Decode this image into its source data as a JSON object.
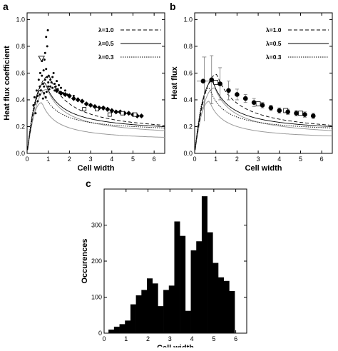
{
  "chart_data": [
    {
      "panel": "a",
      "type": "scatter",
      "xlabel": "Cell width",
      "ylabel": "Heat flux coefficient",
      "xlim": [
        0,
        6.5
      ],
      "ylim": [
        0,
        1.05
      ],
      "xticks": [
        "0",
        "1",
        "2",
        "3",
        "4",
        "5",
        "6"
      ],
      "yticks": [
        "0.0",
        "0.2",
        "0.4",
        "0.6",
        "0.8",
        "1.0"
      ],
      "legend": [
        {
          "label": "λ=1.0",
          "style": "dashed"
        },
        {
          "label": "λ=0.5",
          "style": "solid"
        },
        {
          "label": "λ=0.3",
          "style": "dotted"
        }
      ],
      "model_peaks": [
        {
          "lambda": 1.0,
          "peak_x": 1.05,
          "peak_y": 0.58,
          "y_at_6_5": 0.21
        },
        {
          "lambda": 0.5,
          "peak_x": 0.85,
          "peak_y": 0.53,
          "y_at_6_5": 0.2
        },
        {
          "lambda": 0.3,
          "peak_x": 0.7,
          "peak_y": 0.48,
          "y_at_6_5": 0.19
        }
      ],
      "gray_curves": [
        {
          "peak_x": 0.95,
          "peak_y": 0.48,
          "y_at_6_5": 0.17
        },
        {
          "peak_x": 0.7,
          "peak_y": 0.38,
          "y_at_6_5": 0.12
        }
      ],
      "dots": [
        [
          0.3,
          0.36
        ],
        [
          0.35,
          0.42
        ],
        [
          0.4,
          0.3
        ],
        [
          0.45,
          0.47
        ],
        [
          0.5,
          0.43
        ],
        [
          0.5,
          0.39
        ],
        [
          0.55,
          0.55
        ],
        [
          0.6,
          0.5
        ],
        [
          0.6,
          0.44
        ],
        [
          0.62,
          0.6
        ],
        [
          0.65,
          0.47
        ],
        [
          0.7,
          0.58
        ],
        [
          0.7,
          0.69
        ],
        [
          0.75,
          0.41
        ],
        [
          0.75,
          0.52
        ],
        [
          0.78,
          0.62
        ],
        [
          0.8,
          0.45
        ],
        [
          0.8,
          0.5
        ],
        [
          0.82,
          0.7
        ],
        [
          0.85,
          0.55
        ],
        [
          0.85,
          0.75
        ],
        [
          0.88,
          0.42
        ],
        [
          0.9,
          0.63
        ],
        [
          0.9,
          0.87
        ],
        [
          0.92,
          0.46
        ],
        [
          0.95,
          0.8
        ],
        [
          0.95,
          0.57
        ],
        [
          0.98,
          0.92
        ],
        [
          1.0,
          0.5
        ],
        [
          1.0,
          0.53
        ],
        [
          1.02,
          0.58
        ],
        [
          1.05,
          0.48
        ],
        [
          1.1,
          0.55
        ],
        [
          1.1,
          0.5
        ],
        [
          1.15,
          0.53
        ],
        [
          1.2,
          0.57
        ],
        [
          1.2,
          0.49
        ],
        [
          1.25,
          0.6
        ],
        [
          1.3,
          0.52
        ],
        [
          1.3,
          0.47
        ],
        [
          1.35,
          0.5
        ],
        [
          1.4,
          0.54
        ],
        [
          1.45,
          0.48
        ],
        [
          1.5,
          0.51
        ],
        [
          1.55,
          0.46
        ],
        [
          1.6,
          0.49
        ],
        [
          1.7,
          0.45
        ],
        [
          1.8,
          0.47
        ],
        [
          1.9,
          0.44
        ],
        [
          2.0,
          0.42
        ],
        [
          2.2,
          0.43
        ],
        [
          2.4,
          0.41
        ],
        [
          2.6,
          0.39
        ],
        [
          2.8,
          0.37
        ],
        [
          3.0,
          0.36
        ],
        [
          3.2,
          0.35
        ],
        [
          3.4,
          0.34
        ],
        [
          3.6,
          0.33
        ],
        [
          3.8,
          0.32
        ],
        [
          4.0,
          0.31
        ]
      ],
      "diamonds": [
        [
          1.4,
          0.47
        ],
        [
          1.6,
          0.45
        ],
        [
          1.8,
          0.44
        ],
        [
          2.0,
          0.43
        ],
        [
          2.2,
          0.41
        ],
        [
          2.4,
          0.4
        ],
        [
          2.6,
          0.39
        ],
        [
          2.8,
          0.37
        ],
        [
          3.0,
          0.36
        ],
        [
          3.2,
          0.35
        ],
        [
          3.4,
          0.34
        ],
        [
          3.6,
          0.34
        ],
        [
          3.8,
          0.33
        ],
        [
          4.0,
          0.32
        ],
        [
          4.2,
          0.31
        ],
        [
          4.4,
          0.31
        ],
        [
          4.6,
          0.3
        ],
        [
          4.8,
          0.3
        ],
        [
          5.0,
          0.29
        ],
        [
          5.2,
          0.28
        ],
        [
          5.4,
          0.28
        ]
      ],
      "open_squares": [
        [
          2.7,
          0.33
        ],
        [
          3.3,
          0.33
        ],
        [
          3.9,
          0.29
        ],
        [
          4.5,
          0.3
        ],
        [
          5.1,
          0.29
        ]
      ],
      "open_triangle": [
        0.68,
        0.71
      ]
    },
    {
      "panel": "b",
      "type": "scatter",
      "xlabel": "Cell width",
      "ylabel": "Heat flux",
      "xlim": [
        0,
        6.5
      ],
      "ylim": [
        0,
        1.05
      ],
      "xticks": [
        "0",
        "1",
        "2",
        "3",
        "4",
        "5",
        "6"
      ],
      "yticks": [
        "0.0",
        "0.2",
        "0.4",
        "0.6",
        "0.8",
        "1.0"
      ],
      "legend": [
        {
          "label": "λ=1.0",
          "style": "dashed"
        },
        {
          "label": "λ=0.5",
          "style": "solid"
        },
        {
          "label": "λ=0.3",
          "style": "dotted"
        }
      ],
      "points": [
        {
          "x": 0.4,
          "y": 0.54,
          "err": 0.0
        },
        {
          "x": 0.8,
          "y": 0.55,
          "err": 0.18
        },
        {
          "x": 1.2,
          "y": 0.52,
          "err": 0.12
        },
        {
          "x": 1.6,
          "y": 0.47,
          "err": 0.07
        },
        {
          "x": 2.0,
          "y": 0.44,
          "err": 0.04
        },
        {
          "x": 2.4,
          "y": 0.41,
          "err": 0.03
        },
        {
          "x": 2.8,
          "y": 0.38,
          "err": 0.03
        },
        {
          "x": 3.2,
          "y": 0.36,
          "err": 0.02
        },
        {
          "x": 3.6,
          "y": 0.34,
          "err": 0.02
        },
        {
          "x": 4.0,
          "y": 0.32,
          "err": 0.02
        },
        {
          "x": 4.4,
          "y": 0.31,
          "err": 0.02
        },
        {
          "x": 4.8,
          "y": 0.3,
          "err": 0.02
        },
        {
          "x": 5.2,
          "y": 0.29,
          "err": 0.02
        },
        {
          "x": 5.6,
          "y": 0.28,
          "err": 0.02
        }
      ],
      "open_points": [
        [
          1.0,
          0.53
        ],
        [
          3.0,
          0.37
        ],
        [
          4.3,
          0.32
        ],
        [
          5.0,
          0.3
        ]
      ],
      "left_errorbar": {
        "x": 0.45,
        "low": 0.24,
        "high": 0.72
      },
      "model_peaks": [
        {
          "lambda": 1.0,
          "peak_x": 1.05,
          "peak_y": 0.59,
          "y_at_6_5": 0.21
        },
        {
          "lambda": 0.5,
          "peak_x": 0.85,
          "peak_y": 0.54,
          "y_at_6_5": 0.2
        },
        {
          "lambda": 0.3,
          "peak_x": 0.7,
          "peak_y": 0.49,
          "y_at_6_5": 0.19
        }
      ],
      "gray_curves": [
        {
          "peak_x": 0.95,
          "peak_y": 0.49,
          "y_at_6_5": 0.17
        },
        {
          "peak_x": 0.7,
          "peak_y": 0.39,
          "y_at_6_5": 0.13
        }
      ]
    },
    {
      "panel": "c",
      "type": "bar",
      "xlabel": "Cell width",
      "ylabel": "Occurences",
      "xlim": [
        0,
        6.5
      ],
      "ylim": [
        0,
        400
      ],
      "xticks": [
        "0",
        "1",
        "2",
        "3",
        "4",
        "5",
        "6"
      ],
      "yticks": [
        "0",
        "100",
        "200",
        "300"
      ],
      "bin_width": 0.25,
      "bin_start": 0.2,
      "values": [
        10,
        18,
        25,
        35,
        80,
        105,
        120,
        152,
        138,
        75,
        120,
        132,
        310,
        270,
        62,
        230,
        255,
        380,
        280,
        195,
        155,
        145,
        117
      ]
    }
  ]
}
